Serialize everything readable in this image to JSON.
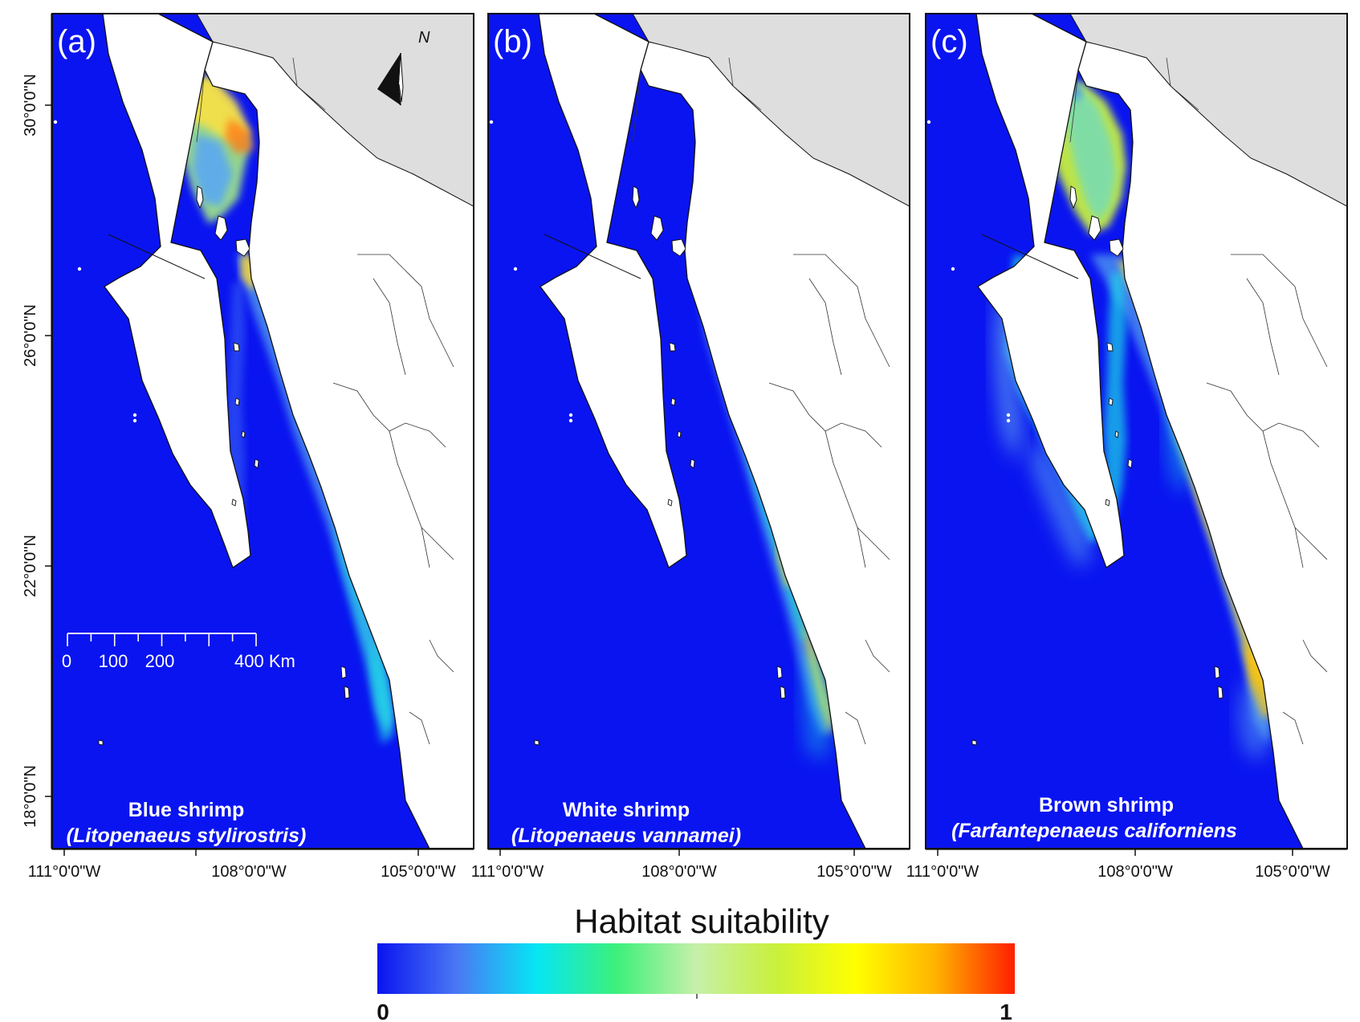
{
  "colors": {
    "sea": "#0a14f0",
    "land": "#ffffff",
    "us_land": "#dedede",
    "coast": "#111111",
    "frame": "#111111",
    "ramp": [
      "#0a14f0",
      "#4a78f4",
      "#06e6f4",
      "#3cf07a",
      "#c6f0aa",
      "#c8f03c",
      "#ffff00",
      "#ffb400",
      "#ff1e00"
    ]
  },
  "panels": [
    {
      "id": "a",
      "letter": "(a)",
      "common_name": "Blue shrimp",
      "scientific_name": "(Litopenaeus stylirostris)",
      "x_tick_labels": [
        "111°0'0\"W",
        "108°0'0\"W",
        "105°0'0\"W"
      ],
      "has_lat_axis": true,
      "has_scale_bar": true,
      "has_north_arrow": true
    },
    {
      "id": "b",
      "letter": "(b)",
      "common_name": "White shrimp",
      "scientific_name": "(Litopenaeus vannamei)",
      "x_tick_labels": [
        "111°0'0\"W",
        "108°0'0\"W",
        "105°0'0\"W"
      ],
      "has_lat_axis": false,
      "has_scale_bar": false,
      "has_north_arrow": false
    },
    {
      "id": "c",
      "letter": "(c)",
      "common_name": "Brown shrimp",
      "scientific_name": "(Farfantepenaeus californiens",
      "x_tick_labels": [
        "111°0'0\"W",
        "108°0'0\"W",
        "105°0'0\"W"
      ],
      "has_lat_axis": false,
      "has_scale_bar": false,
      "has_north_arrow": false
    }
  ],
  "lat_tick_labels": [
    "30°0'0\"N",
    "26°0'0\"N",
    "22°0'0\"N",
    "18°0'0\"N"
  ],
  "north_label": "N",
  "scale_bar": {
    "labels": [
      "0",
      "100",
      "200",
      "400 Km"
    ]
  },
  "legend": {
    "title": "Habitat suitability",
    "min_label": "0",
    "max_label": "1"
  }
}
